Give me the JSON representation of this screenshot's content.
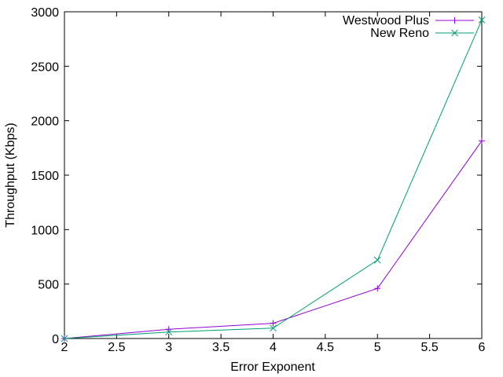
{
  "chart_data": {
    "type": "line",
    "title": "",
    "xlabel": "Error Exponent",
    "ylabel": "Throughput (Kbps)",
    "xlim": [
      2,
      6
    ],
    "ylim": [
      0,
      3000
    ],
    "x_ticks": [
      2,
      2.5,
      3,
      3.5,
      4,
      4.5,
      5,
      5.5,
      6
    ],
    "y_ticks": [
      0,
      500,
      1000,
      1500,
      2000,
      2500,
      3000
    ],
    "grid": false,
    "legend_position": "top-right",
    "series": [
      {
        "name": "Westwood Plus",
        "color": "#9400d3",
        "marker": "plus",
        "x": [
          2,
          3,
          4,
          5,
          6
        ],
        "y": [
          0,
          85,
          140,
          460,
          1815
        ]
      },
      {
        "name": "New Reno",
        "color": "#009e73",
        "marker": "cross",
        "x": [
          2,
          3,
          4,
          5,
          6
        ],
        "y": [
          0,
          60,
          95,
          720,
          2925
        ]
      }
    ]
  }
}
